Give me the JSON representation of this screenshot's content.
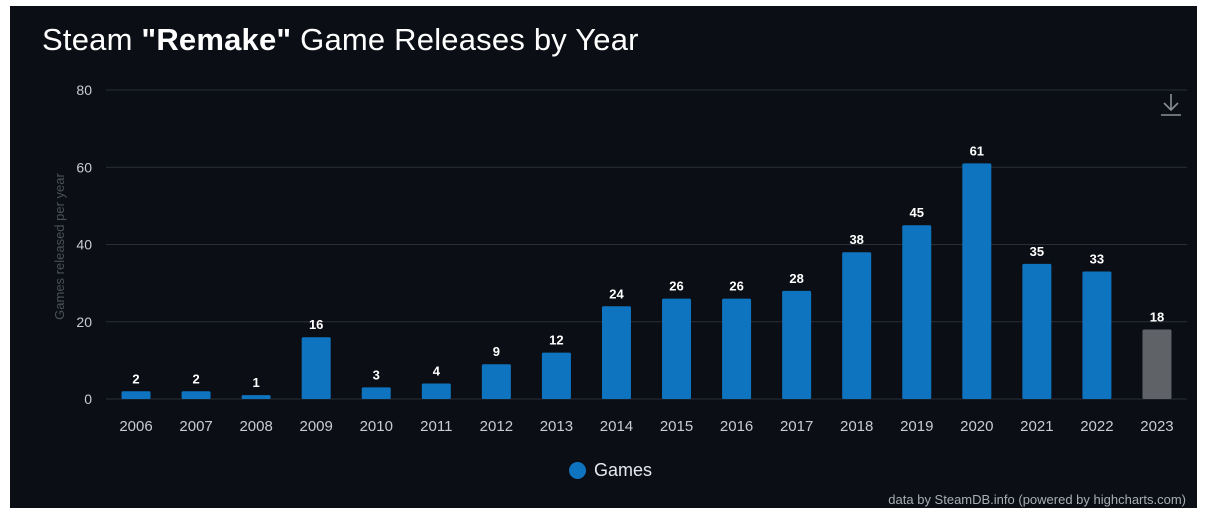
{
  "title": {
    "prefix": "Steam ",
    "emphasis": "\"Remake\"",
    "suffix": " Game Releases by Year"
  },
  "download_icon": "download-icon",
  "legend": {
    "label": "Games",
    "color": "#0f74c0"
  },
  "credits": "data by SteamDB.info (powered by highcharts.com)",
  "colors": {
    "bar": "#0f74c0",
    "bar_highlight": "#5f6266",
    "background": "#0b0e14",
    "grid": "#2a2f38",
    "tick_text": "#c9ccd1",
    "data_label": "#ffffff"
  },
  "chart_data": {
    "type": "bar",
    "categories": [
      "2006",
      "2007",
      "2008",
      "2009",
      "2010",
      "2011",
      "2012",
      "2013",
      "2014",
      "2015",
      "2016",
      "2017",
      "2018",
      "2019",
      "2020",
      "2021",
      "2022",
      "2023"
    ],
    "series": [
      {
        "name": "Games",
        "values": [
          2,
          2,
          1,
          16,
          3,
          4,
          9,
          12,
          24,
          26,
          26,
          28,
          38,
          45,
          61,
          35,
          33,
          18
        ]
      }
    ],
    "highlighted_category": "2023",
    "ylabel": "Games released per year",
    "xlabel": "",
    "ylim": [
      0,
      80
    ],
    "yticks": [
      0,
      20,
      40,
      60,
      80
    ],
    "grid": true,
    "legend_position": "bottom-center",
    "data_labels": true
  }
}
